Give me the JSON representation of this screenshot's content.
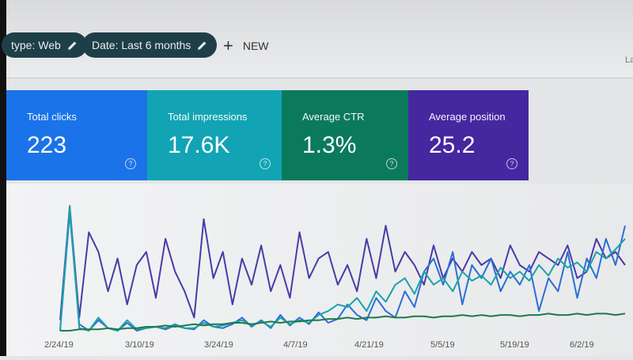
{
  "filters": [
    {
      "label": "type: Web",
      "icon": "pencil-icon"
    },
    {
      "label": "Date: Last 6 months",
      "icon": "pencil-icon"
    }
  ],
  "new_button": {
    "icon": "plus-icon",
    "label": "NEW"
  },
  "truncated_right": "La",
  "cards": [
    {
      "label": "Total clicks",
      "value": "223",
      "color": "#1a73e8"
    },
    {
      "label": "Total impressions",
      "value": "17.6K",
      "color": "#12a4b4"
    },
    {
      "label": "Average CTR",
      "value": "1.3%",
      "color": "#0b7a5c"
    },
    {
      "label": "Average position",
      "value": "25.2",
      "color": "#4527a0"
    }
  ],
  "chart_data": {
    "type": "line",
    "x_ticks": [
      "2/24/19",
      "3/10/19",
      "3/24/19",
      "4/7/19",
      "4/21/19",
      "5/5/19",
      "5/19/19",
      "6/2/19"
    ],
    "grid": false,
    "series": [
      {
        "metric": "position",
        "color": "#4a3aa8",
        "values": [
          8,
          95,
          10,
          75,
          60,
          30,
          55,
          20,
          50,
          60,
          25,
          70,
          45,
          30,
          10,
          85,
          40,
          60,
          20,
          55,
          35,
          65,
          30,
          50,
          25,
          75,
          40,
          55,
          60,
          35,
          50,
          30,
          70,
          40,
          80,
          45,
          60,
          50,
          35,
          65,
          40,
          55,
          45,
          60,
          50,
          55,
          40,
          65,
          50,
          45,
          60,
          55,
          50,
          65,
          40,
          45,
          70,
          55,
          60,
          50
        ]
      },
      {
        "metric": "clicks",
        "color": "#2b6fd6",
        "values": [
          0,
          90,
          5,
          0,
          8,
          2,
          0,
          6,
          0,
          2,
          3,
          1,
          4,
          2,
          1,
          8,
          3,
          2,
          5,
          10,
          3,
          8,
          2,
          12,
          4,
          10,
          5,
          14,
          6,
          9,
          20,
          12,
          8,
          25,
          15,
          10,
          30,
          18,
          45,
          55,
          35,
          60,
          20,
          50,
          40,
          55,
          30,
          45,
          35,
          50,
          15,
          40,
          30,
          60,
          25,
          55,
          40,
          70,
          50,
          80
        ]
      },
      {
        "metric": "impressions",
        "color": "#1aa3a8",
        "values": [
          0,
          95,
          2,
          0,
          10,
          2,
          0,
          8,
          1,
          2,
          3,
          2,
          5,
          2,
          2,
          6,
          3,
          4,
          6,
          8,
          4,
          7,
          3,
          10,
          5,
          8,
          6,
          12,
          15,
          20,
          18,
          25,
          15,
          30,
          22,
          35,
          40,
          28,
          45,
          35,
          40,
          30,
          45,
          38,
          42,
          35,
          48,
          40,
          45,
          38,
          50,
          42,
          55,
          48,
          52,
          45,
          60,
          55,
          62,
          70
        ]
      },
      {
        "metric": "ctr",
        "color": "#1f7a4a",
        "values": [
          0,
          0,
          1,
          1,
          1,
          2,
          1,
          2,
          2,
          3,
          3,
          4,
          3,
          4,
          5,
          4,
          5,
          5,
          6,
          6,
          5,
          6,
          7,
          6,
          7,
          7,
          8,
          8,
          9,
          9,
          10,
          9,
          10,
          10,
          11,
          10,
          10,
          11,
          11,
          10,
          11,
          11,
          12,
          11,
          12,
          11,
          12,
          12,
          11,
          12,
          12,
          13,
          12,
          12,
          13,
          12,
          13,
          13,
          12,
          13
        ]
      }
    ]
  }
}
